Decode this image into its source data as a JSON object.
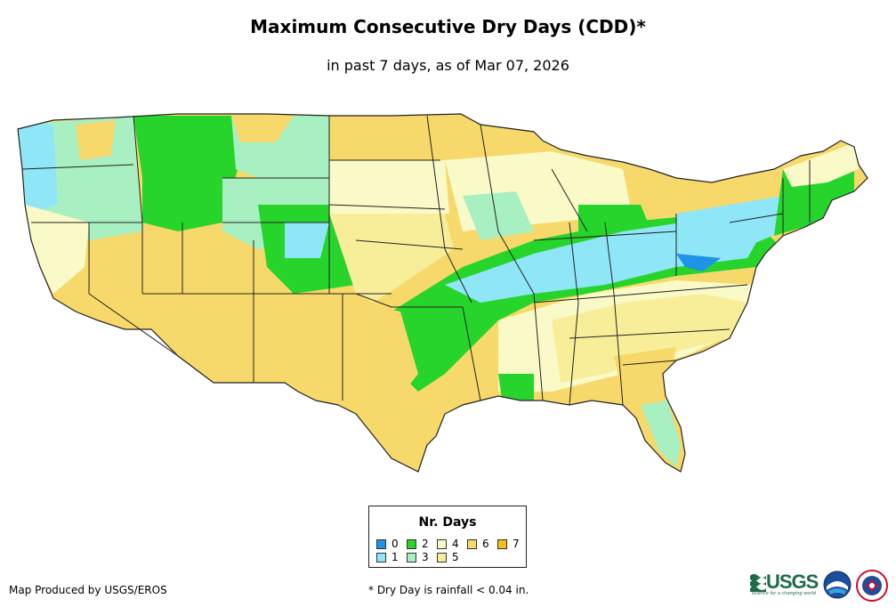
{
  "title": "Maximum Consecutive Dry Days (CDD)*",
  "subtitle": "in past 7 days, as of Mar 07, 2026",
  "legend": {
    "title": "Nr. Days",
    "items": [
      {
        "label": "0",
        "color": "#1f93e6"
      },
      {
        "label": "1",
        "color": "#8fe6f7"
      },
      {
        "label": "2",
        "color": "#27d42c"
      },
      {
        "label": "3",
        "color": "#a8f0c2"
      },
      {
        "label": "4",
        "color": "#fafac8"
      },
      {
        "label": "5",
        "color": "#f8ee9a"
      },
      {
        "label": "6",
        "color": "#f6d96a"
      },
      {
        "label": "7",
        "color": "#f3bf1f"
      }
    ]
  },
  "footer": {
    "producer": "Map Produced by USGS/EROS",
    "note": "* Dry Day is rainfall < 0.04 in."
  },
  "logos": {
    "usgs": "USGS",
    "usgs_tagline": "science for a changing world"
  },
  "colors": {
    "water": "#ffffff",
    "border": "#222222"
  }
}
